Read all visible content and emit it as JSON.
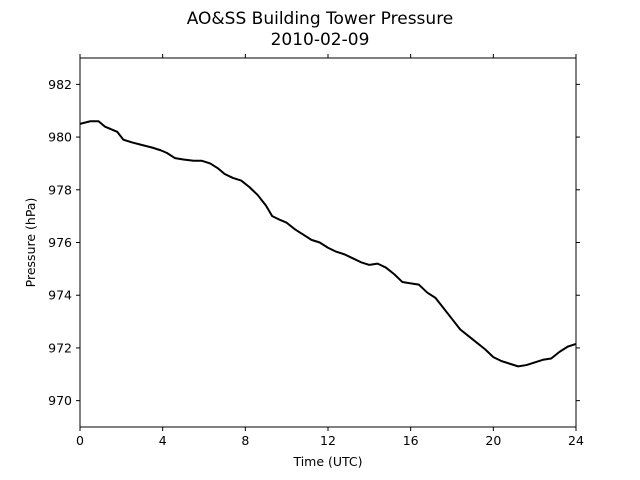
{
  "chart_data": {
    "type": "line",
    "title": "AO&SS Building Tower Pressure",
    "subtitle": "2010-02-09",
    "xlabel": "Time (UTC)",
    "ylabel": "Pressure (hPa)",
    "xlim": [
      0,
      24
    ],
    "ylim": [
      969,
      983
    ],
    "xticks": [
      0,
      4,
      8,
      12,
      16,
      20,
      24
    ],
    "yticks": [
      970,
      972,
      974,
      976,
      978,
      980,
      982
    ],
    "grid": false,
    "line_color": "#000000",
    "series": [
      {
        "x": [
          0,
          0.5,
          0.9,
          1.2,
          1.5,
          1.8,
          2.1,
          2.5,
          3.0,
          3.5,
          3.9,
          4.2,
          4.6,
          5.0,
          5.5,
          5.9,
          6.3,
          6.7,
          7.0,
          7.4,
          7.8,
          8.2,
          8.6,
          9.0,
          9.3,
          9.7,
          10.0,
          10.4,
          10.8,
          11.2,
          11.6,
          12.0,
          12.4,
          12.8,
          13.2,
          13.6,
          14.0,
          14.4,
          14.8,
          15.2,
          15.6,
          16.0,
          16.4,
          16.8,
          17.2,
          17.6,
          18.0,
          18.4,
          18.8,
          19.2,
          19.6,
          20.0,
          20.4,
          20.8,
          21.2,
          21.6,
          22.0,
          22.4,
          22.8,
          23.2,
          23.6,
          24.0
        ],
        "y": [
          980.5,
          980.6,
          980.6,
          980.4,
          980.3,
          980.2,
          979.9,
          979.8,
          979.7,
          979.6,
          979.5,
          979.4,
          979.2,
          979.15,
          979.1,
          979.1,
          979.0,
          978.8,
          978.6,
          978.45,
          978.35,
          978.1,
          977.8,
          977.4,
          977.0,
          976.85,
          976.75,
          976.5,
          976.3,
          976.1,
          976.0,
          975.8,
          975.65,
          975.55,
          975.4,
          975.25,
          975.15,
          975.2,
          975.05,
          974.8,
          974.5,
          974.45,
          974.4,
          974.1,
          973.9,
          973.5,
          973.1,
          972.7,
          972.45,
          972.2,
          971.95,
          971.65,
          971.5,
          971.4,
          971.3,
          971.35,
          971.45,
          971.55,
          971.6,
          971.85,
          972.05,
          972.15
        ]
      }
    ]
  }
}
